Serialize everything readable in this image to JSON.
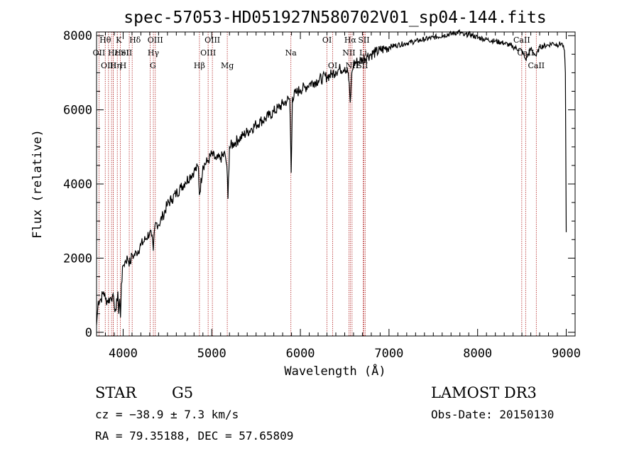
{
  "chart_data": {
    "type": "line",
    "title": "spec-57053-HD051927N580702V01_sp04-144.fits",
    "xlabel": "Wavelength (Å)",
    "ylabel": "Flux (relative)",
    "xlim": [
      3700,
      9100
    ],
    "ylim": [
      -100,
      8100
    ],
    "xticks": [
      4000,
      5000,
      6000,
      7000,
      8000,
      9000
    ],
    "yticks": [
      0,
      2000,
      4000,
      6000,
      8000
    ],
    "grid": false,
    "legend": "none",
    "series": [
      {
        "color": "#000000",
        "x": [
          3700,
          3720,
          3750,
          3780,
          3800,
          3820,
          3850,
          3880,
          3900,
          3920,
          3940,
          3950,
          3960,
          3970,
          3980,
          4000,
          4020,
          4050,
          4080,
          4100,
          4120,
          4150,
          4200,
          4250,
          4300,
          4320,
          4340,
          4360,
          4380,
          4400,
          4450,
          4500,
          4550,
          4600,
          4650,
          4700,
          4750,
          4800,
          4850,
          4861,
          4900,
          4950,
          5000,
          5050,
          5100,
          5150,
          5170,
          5183,
          5200,
          5250,
          5300,
          5350,
          5400,
          5450,
          5500,
          5550,
          5600,
          5650,
          5700,
          5750,
          5800,
          5850,
          5880,
          5890,
          5896,
          5910,
          5950,
          6000,
          6050,
          6100,
          6150,
          6200,
          6250,
          6300,
          6350,
          6400,
          6450,
          6500,
          6540,
          6563,
          6580,
          6600,
          6650,
          6700,
          6750,
          6800,
          6850,
          6900,
          6950,
          7000,
          7100,
          7200,
          7300,
          7400,
          7500,
          7600,
          7700,
          7800,
          7850,
          7900,
          8000,
          8100,
          8200,
          8300,
          8400,
          8498,
          8542,
          8600,
          8662,
          8700,
          8800,
          8850,
          8900,
          8950,
          8980,
          8990,
          9000
        ],
        "y": [
          200,
          850,
          900,
          1100,
          900,
          850,
          900,
          1000,
          700,
          600,
          1100,
          500,
          900,
          400,
          1300,
          1800,
          1900,
          2000,
          1850,
          2100,
          2050,
          2150,
          2350,
          2500,
          2700,
          2600,
          2200,
          2900,
          2950,
          2900,
          3150,
          3450,
          3600,
          3750,
          3900,
          4050,
          4200,
          4350,
          4450,
          3700,
          4500,
          4600,
          4800,
          4650,
          4700,
          4800,
          4500,
          3600,
          5000,
          5100,
          5200,
          5300,
          5400,
          5500,
          5600,
          5700,
          5750,
          5850,
          5950,
          6050,
          6150,
          6250,
          6300,
          5200,
          4300,
          6350,
          6450,
          6550,
          6600,
          6700,
          6750,
          6800,
          6850,
          6900,
          6950,
          7050,
          7100,
          7150,
          7000,
          6200,
          7000,
          7250,
          7300,
          7350,
          7450,
          7500,
          7550,
          7600,
          7650,
          7700,
          7750,
          7800,
          7850,
          7900,
          7950,
          8000,
          8050,
          8100,
          8000,
          8050,
          7950,
          7900,
          7850,
          7800,
          7700,
          7600,
          7350,
          7650,
          7450,
          7700,
          7750,
          7800,
          7750,
          7800,
          7600,
          7000,
          2700
        ]
      }
    ],
    "lines": [
      {
        "label": "Hθ",
        "x": 3798,
        "row": 0,
        "dx": 0
      },
      {
        "label": "OII",
        "x": 3727,
        "row": 1,
        "dx": 0
      },
      {
        "label": "OIII",
        "x": 3869,
        "row": 2,
        "dx": -4
      },
      {
        "label": "Hη",
        "x": 3835,
        "row": 2,
        "dx": 10
      },
      {
        "label": "K",
        "x": 3934,
        "row": 0,
        "dx": 2
      },
      {
        "label": "H",
        "x": 3968,
        "row": 2,
        "dx": 4
      },
      {
        "label": "Hε",
        "x": 3889,
        "row": 1,
        "dx": 0
      },
      {
        "label": "HeI",
        "x": 3889,
        "row": 1,
        "dx": 12
      },
      {
        "label": "SII",
        "x": 4069,
        "row": 1,
        "dx": -4
      },
      {
        "label": "Hδ",
        "x": 4102,
        "row": 0,
        "dx": 4
      },
      {
        "label": "G",
        "x": 4304,
        "row": 2,
        "dx": 4
      },
      {
        "label": "Hγ",
        "x": 4341,
        "row": 1,
        "dx": 0
      },
      {
        "label": "OIII",
        "x": 4363,
        "row": 0,
        "dx": 0
      },
      {
        "label": "Hβ",
        "x": 4861,
        "row": 2,
        "dx": 0
      },
      {
        "label": "OIII",
        "x": 4959,
        "row": 1,
        "dx": 0
      },
      {
        "label": "OIII",
        "x": 5007,
        "row": 0,
        "dx": 0
      },
      {
        "label": "Mg",
        "x": 5175,
        "row": 2,
        "dx": 0
      },
      {
        "label": "Na",
        "x": 5893,
        "row": 1,
        "dx": 0
      },
      {
        "label": "OI",
        "x": 6300,
        "row": 0,
        "dx": 0
      },
      {
        "label": "OI",
        "x": 6364,
        "row": 2,
        "dx": 0
      },
      {
        "label": "NII",
        "x": 6548,
        "row": 1,
        "dx": 0
      },
      {
        "label": "Hα",
        "x": 6563,
        "row": 0,
        "dx": 0
      },
      {
        "label": "NII",
        "x": 6583,
        "row": 2,
        "dx": 0
      },
      {
        "label": "SII",
        "x": 6716,
        "row": 0,
        "dx": 0
      },
      {
        "label": "Li",
        "x": 6708,
        "row": 1,
        "dx": 0
      },
      {
        "label": "SII",
        "x": 6731,
        "row": 2,
        "dx": -4
      },
      {
        "label": "CaII",
        "x": 8498,
        "row": 0,
        "dx": 0
      },
      {
        "label": "CaII",
        "x": 8542,
        "row": 1,
        "dx": 0
      },
      {
        "label": "CaII",
        "x": 8662,
        "row": 2,
        "dx": 0
      }
    ]
  },
  "info": {
    "object_class": "STAR",
    "subclass": "G5",
    "survey": "LAMOST DR3",
    "cz": "cz = −38.9 ± 7.3 km/s",
    "obs_date": "Obs-Date: 20150130",
    "coords": "RA =  79.35188, DEC =  57.65809"
  },
  "colors": {
    "spectrum": "#000000",
    "emission_marker": "#b22222"
  }
}
